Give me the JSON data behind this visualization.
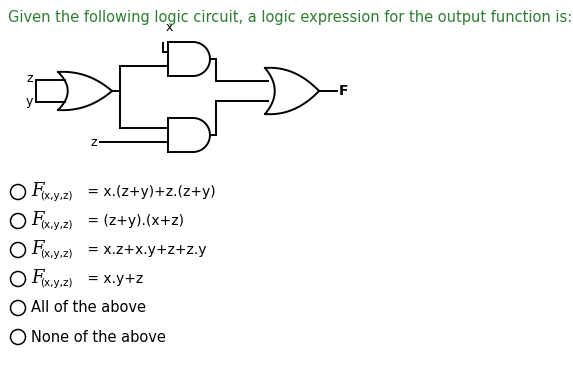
{
  "title": "Given the following logic circuit, a logic expression for the output function is:",
  "title_color": "#2e7d32",
  "bg_color": "#ffffff",
  "options": [
    {
      "has_F": true,
      "eq": " = x.(z+y)+z.(z+y)"
    },
    {
      "has_F": true,
      "eq": " = (z+y).(x+z)"
    },
    {
      "has_F": true,
      "eq": " = x.z+x.y+z+z.y"
    },
    {
      "has_F": true,
      "eq": " = x.y+z"
    },
    {
      "has_F": false,
      "eq": "All of the above"
    },
    {
      "has_F": false,
      "eq": "None of the above"
    }
  ],
  "circle_color": "#000000",
  "text_color": "#000000",
  "lw": 1.4
}
